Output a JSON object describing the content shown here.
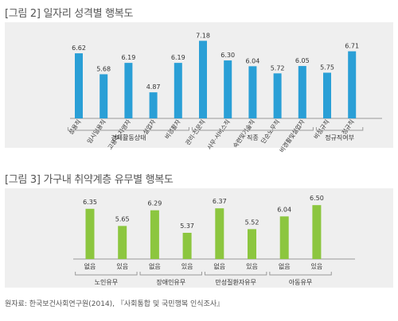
{
  "figure1": {
    "title": "[그림 2] 일자리 성격별 행복도"
  },
  "figure2": {
    "title": "[그림 3] 가구내 취약계층 유무별 행복도"
  },
  "source": "원자료: 한국보건사회연구원(2014), 『사회통합 및 국민행복 인식조사』",
  "colors": {
    "bar1": "#2a9fd6",
    "bar2": "#8cc63f",
    "panel": "#efefef",
    "axis": "#999999"
  },
  "chart_data": [
    {
      "type": "bar",
      "title": "[그림 2] 일자리 성격별 행복도",
      "categories": [
        "상용직",
        "임시일용직",
        "고용주·자영자",
        "실업자",
        "비경활자",
        "관리·전문직",
        "사무·서비스직",
        "숙련및기술직",
        "단순노무직",
        "비경활및실업자",
        "비정규직",
        "정규직"
      ],
      "values": [
        6.62,
        5.68,
        6.19,
        4.87,
        6.19,
        7.18,
        6.3,
        6.04,
        5.72,
        6.05,
        5.75,
        6.71
      ],
      "value_labels": [
        "6.62",
        "5.68",
        "6.19",
        "4.87",
        "6.19",
        "7.18",
        "6.30",
        "6.04",
        "5.72",
        "6.05",
        "5.75",
        "6.71"
      ],
      "groups": [
        {
          "label": "경제활동상태",
          "count": 5
        },
        {
          "label": "직종",
          "count": 5
        },
        {
          "label": "정규직여부",
          "count": 2
        }
      ],
      "ylim": [
        3.7,
        7.3
      ],
      "grid": false
    },
    {
      "type": "bar",
      "title": "[그림 3] 가구내 취약계층 유무별 행복도",
      "categories": [
        "없음",
        "있음",
        "없음",
        "있음",
        "없음",
        "있음",
        "없음",
        "있음"
      ],
      "values": [
        6.35,
        5.65,
        6.29,
        5.37,
        6.37,
        5.52,
        6.04,
        6.5
      ],
      "value_labels": [
        "6.35",
        "5.65",
        "6.29",
        "5.37",
        "6.37",
        "5.52",
        "6.04",
        "6.50"
      ],
      "groups": [
        {
          "label": "노인유무",
          "count": 2
        },
        {
          "label": "장애인유무",
          "count": 2
        },
        {
          "label": "만성질환자유무",
          "count": 2
        },
        {
          "label": "아동유무",
          "count": 2
        }
      ],
      "ylim": [
        4.3,
        6.7
      ],
      "grid": false
    }
  ]
}
